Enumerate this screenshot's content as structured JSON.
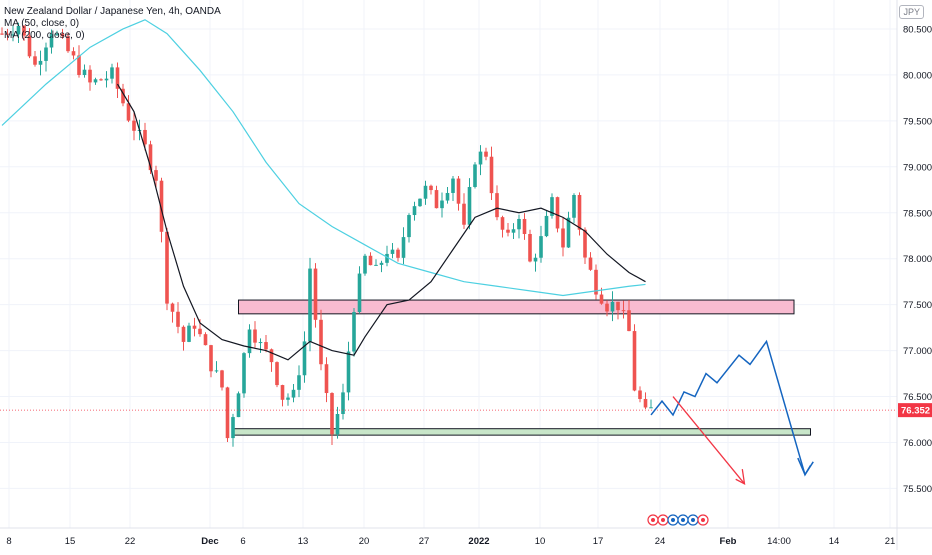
{
  "header": {
    "title": "New Zealand Dollar / Japanese Yen, 4h, OANDA",
    "ma_fast": "MA (50, close, 0)",
    "ma_slow": "MA (200, close, 0)",
    "currency_badge": "JPY"
  },
  "chart_data": {
    "type": "candlestick",
    "title": "New Zealand Dollar / Japanese Yen, 4h, OANDA",
    "ylim": [
      75.2,
      80.75
    ],
    "y_ticks": [
      {
        "value": 75.5,
        "label": "75.500"
      },
      {
        "value": 76.0,
        "label": "76.000"
      },
      {
        "value": 76.5,
        "label": "76.500"
      },
      {
        "value": 77.0,
        "label": "77.000"
      },
      {
        "value": 77.5,
        "label": "77.500"
      },
      {
        "value": 78.0,
        "label": "78.000"
      },
      {
        "value": 78.5,
        "label": "78.500"
      },
      {
        "value": 79.0,
        "label": "79.000"
      },
      {
        "value": 79.5,
        "label": "79.500"
      },
      {
        "value": 80.0,
        "label": "80.000"
      },
      {
        "value": 80.5,
        "label": "80.500"
      }
    ],
    "x_ticks": [
      "8",
      "15",
      "22",
      "Dec",
      "6",
      "13",
      "20",
      "27",
      "2022",
      "10",
      "17",
      "24",
      "Feb",
      "14:00",
      "14",
      "21"
    ],
    "last_price": {
      "value": 76.352,
      "label": "76.352",
      "color": "#f23645"
    },
    "colors": {
      "up": "#26a69a",
      "down": "#ef5350",
      "ma50": "#131722",
      "ma200": "#4dd0e1",
      "projection_blue": "#1565c0",
      "projection_red": "#f23645"
    },
    "grid": true,
    "price_path": [
      [
        0,
        80.45
      ],
      [
        3,
        80.55
      ],
      [
        6,
        80.1
      ],
      [
        9,
        80.5
      ],
      [
        12,
        80.25
      ],
      [
        16,
        79.9
      ],
      [
        20,
        80.0
      ],
      [
        23,
        79.55
      ],
      [
        26,
        79.2
      ],
      [
        28,
        78.9
      ],
      [
        30,
        77.6
      ],
      [
        33,
        77.1
      ],
      [
        35,
        77.3
      ],
      [
        38,
        76.85
      ],
      [
        40,
        76.6
      ],
      [
        41,
        76.05
      ],
      [
        43,
        76.6
      ],
      [
        45,
        77.3
      ],
      [
        47,
        77.05
      ],
      [
        49,
        76.9
      ],
      [
        51,
        76.5
      ],
      [
        53,
        76.5
      ],
      [
        55,
        77.1
      ],
      [
        56,
        77.9
      ],
      [
        58,
        76.8
      ],
      [
        60,
        76.1
      ],
      [
        62,
        76.5
      ],
      [
        64,
        77.5
      ],
      [
        66,
        78.0
      ],
      [
        68,
        77.85
      ],
      [
        70,
        78.1
      ],
      [
        72,
        77.95
      ],
      [
        74,
        78.55
      ],
      [
        77,
        78.75
      ],
      [
        79,
        78.6
      ],
      [
        82,
        78.9
      ],
      [
        84,
        78.3
      ],
      [
        86,
        79.1
      ],
      [
        88,
        79.15
      ],
      [
        90,
        78.4
      ],
      [
        92,
        78.2
      ],
      [
        94,
        78.5
      ],
      [
        96,
        77.95
      ],
      [
        98,
        78.2
      ],
      [
        100,
        78.6
      ],
      [
        102,
        78.15
      ],
      [
        104,
        78.7
      ],
      [
        106,
        78.0
      ],
      [
        108,
        77.7
      ],
      [
        110,
        77.5
      ],
      [
        112,
        77.5
      ],
      [
        114,
        77.2
      ],
      [
        115,
        76.6
      ],
      [
        117,
        76.3
      ],
      [
        118,
        76.35
      ]
    ],
    "ma50_path": [
      [
        21,
        79.9
      ],
      [
        24,
        79.6
      ],
      [
        27,
        79.0
      ],
      [
        30,
        78.3
      ],
      [
        33,
        77.7
      ],
      [
        36,
        77.3
      ],
      [
        40,
        77.12
      ],
      [
        44,
        77.05
      ],
      [
        48,
        77.0
      ],
      [
        52,
        76.9
      ],
      [
        56,
        77.1
      ],
      [
        60,
        77.0
      ],
      [
        64,
        76.95
      ],
      [
        66,
        77.15
      ],
      [
        70,
        77.5
      ],
      [
        74,
        77.55
      ],
      [
        78,
        77.75
      ],
      [
        82,
        78.1
      ],
      [
        86,
        78.45
      ],
      [
        90,
        78.55
      ],
      [
        94,
        78.5
      ],
      [
        98,
        78.55
      ],
      [
        102,
        78.45
      ],
      [
        106,
        78.3
      ],
      [
        110,
        78.05
      ],
      [
        114,
        77.85
      ],
      [
        117,
        77.75
      ]
    ],
    "ma200_path": [
      [
        0,
        79.45
      ],
      [
        8,
        79.9
      ],
      [
        16,
        80.3
      ],
      [
        22,
        80.5
      ],
      [
        26,
        80.6
      ],
      [
        30,
        80.45
      ],
      [
        36,
        80.05
      ],
      [
        42,
        79.6
      ],
      [
        48,
        79.05
      ],
      [
        54,
        78.6
      ],
      [
        60,
        78.35
      ],
      [
        66,
        78.15
      ],
      [
        72,
        77.95
      ],
      [
        78,
        77.85
      ],
      [
        84,
        77.75
      ],
      [
        90,
        77.7
      ],
      [
        96,
        77.65
      ],
      [
        102,
        77.6
      ],
      [
        108,
        77.65
      ],
      [
        114,
        77.7
      ],
      [
        117,
        77.72
      ]
    ],
    "resistance_zone": {
      "from_index": 43,
      "to_index": 144,
      "low": 77.4,
      "high": 77.55,
      "color": "#f8bbd0"
    },
    "support_zone": {
      "from_index": 42,
      "to_index": 147,
      "low": 76.08,
      "high": 76.15,
      "color": "#c8e6c9"
    },
    "blue_projection": [
      [
        118,
        76.3
      ],
      [
        120,
        76.45
      ],
      [
        122,
        76.3
      ],
      [
        124,
        76.55
      ],
      [
        126,
        76.5
      ],
      [
        128,
        76.75
      ],
      [
        130,
        76.65
      ],
      [
        134,
        76.95
      ],
      [
        136,
        76.85
      ],
      [
        139,
        77.1
      ],
      [
        146,
        75.65
      ],
      [
        147,
        75.75
      ]
    ],
    "red_projection": [
      [
        122,
        76.5
      ],
      [
        135,
        75.55
      ]
    ]
  }
}
